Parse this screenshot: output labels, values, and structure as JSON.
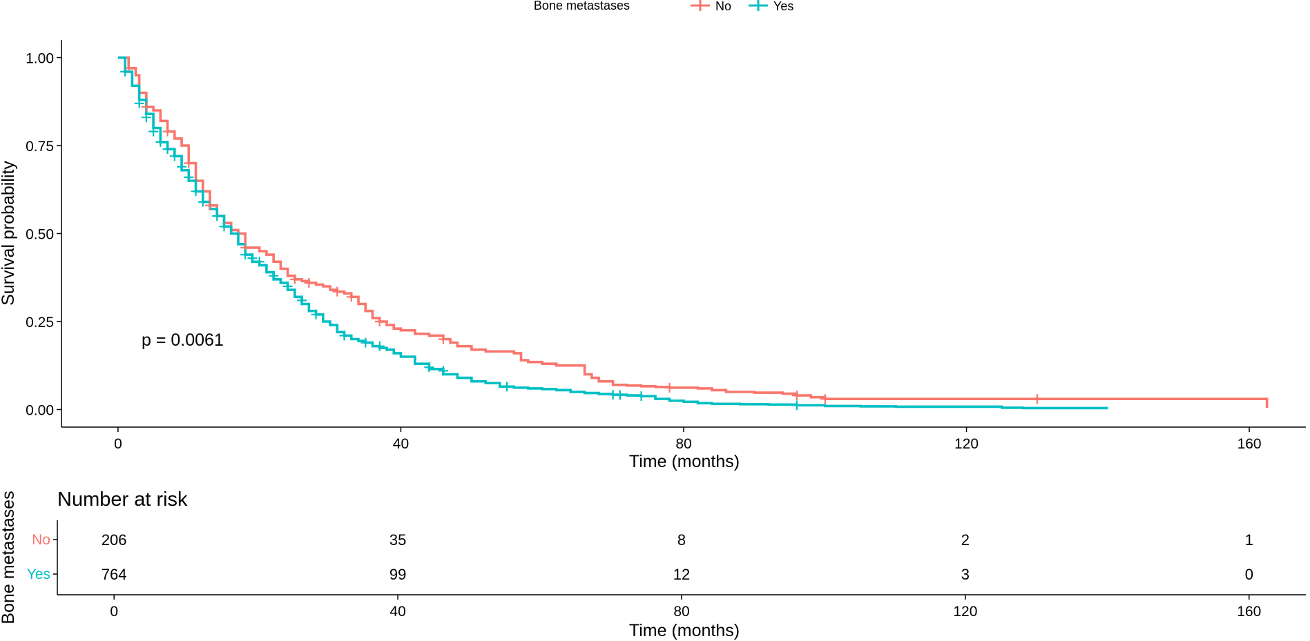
{
  "chart_data": [
    {
      "type": "line",
      "subtype": "kaplan-meier",
      "title": "",
      "xlabel": "Time (months)",
      "ylabel": "Survival probability",
      "xlim": [
        -8,
        168
      ],
      "ylim": [
        -0.05,
        1.05
      ],
      "xticks": [
        0,
        40,
        80,
        120,
        160
      ],
      "xtick_labels": [
        "0",
        "40",
        "80",
        "120",
        "160"
      ],
      "yticks": [
        0,
        0.25,
        0.5,
        0.75,
        1.0
      ],
      "ytick_labels": [
        "0.00",
        "0.25",
        "0.50",
        "0.75",
        "1.00"
      ],
      "grid": false,
      "legend": {
        "title": "Bone metastases",
        "position": "top",
        "entries": [
          "No",
          "Yes"
        ]
      },
      "annotation": "p = 0.0061",
      "series": [
        {
          "name": "No",
          "color": "#F8766D",
          "x": [
            0,
            1.5,
            2.5,
            3,
            4,
            5,
            6,
            7,
            8,
            9,
            10,
            11,
            12,
            13,
            14,
            15,
            16,
            17,
            18,
            19,
            20,
            21,
            22,
            23,
            24,
            25,
            26,
            27,
            28,
            29,
            30,
            31,
            32,
            33,
            34,
            35,
            36,
            37,
            38,
            39,
            40,
            42,
            44,
            46,
            47,
            48,
            50,
            52,
            54,
            56,
            57,
            58,
            60,
            62,
            64,
            66,
            67,
            68,
            70,
            72,
            74,
            76,
            78,
            80,
            82,
            84,
            86,
            88,
            90,
            92,
            94,
            96,
            98,
            100,
            102,
            130,
            162,
            162.5
          ],
          "y": [
            1.0,
            0.97,
            0.95,
            0.9,
            0.86,
            0.85,
            0.82,
            0.79,
            0.77,
            0.75,
            0.7,
            0.65,
            0.62,
            0.58,
            0.55,
            0.53,
            0.51,
            0.5,
            0.46,
            0.46,
            0.45,
            0.44,
            0.42,
            0.4,
            0.38,
            0.37,
            0.365,
            0.36,
            0.355,
            0.35,
            0.34,
            0.335,
            0.33,
            0.32,
            0.3,
            0.28,
            0.26,
            0.25,
            0.24,
            0.23,
            0.225,
            0.215,
            0.21,
            0.2,
            0.19,
            0.18,
            0.17,
            0.165,
            0.165,
            0.16,
            0.14,
            0.135,
            0.13,
            0.125,
            0.125,
            0.1,
            0.09,
            0.08,
            0.07,
            0.068,
            0.066,
            0.064,
            0.062,
            0.062,
            0.06,
            0.055,
            0.05,
            0.05,
            0.048,
            0.048,
            0.045,
            0.04,
            0.035,
            0.03,
            0.03,
            0.03,
            0.03,
            0.005
          ]
        },
        {
          "name": "Yes",
          "color": "#00BFC4",
          "x": [
            0,
            1,
            2,
            3,
            4,
            5,
            6,
            7,
            8,
            9,
            10,
            11,
            12,
            13,
            14,
            15,
            16,
            17,
            18,
            19,
            20,
            21,
            22,
            23,
            24,
            25,
            26,
            27,
            28,
            29,
            30,
            31,
            32,
            33,
            34,
            35,
            36,
            37,
            38,
            39,
            40,
            42,
            44,
            46,
            48,
            50,
            52,
            54,
            56,
            58,
            60,
            62,
            64,
            66,
            68,
            70,
            72,
            74,
            76,
            78,
            80,
            82,
            84,
            88,
            92,
            96,
            100,
            105,
            110,
            115,
            120,
            125,
            128,
            140
          ],
          "y": [
            1.0,
            0.96,
            0.92,
            0.88,
            0.84,
            0.8,
            0.76,
            0.74,
            0.72,
            0.68,
            0.65,
            0.62,
            0.59,
            0.57,
            0.55,
            0.52,
            0.5,
            0.47,
            0.44,
            0.42,
            0.41,
            0.39,
            0.37,
            0.36,
            0.34,
            0.32,
            0.3,
            0.28,
            0.27,
            0.25,
            0.24,
            0.22,
            0.21,
            0.2,
            0.195,
            0.19,
            0.18,
            0.175,
            0.17,
            0.16,
            0.15,
            0.13,
            0.115,
            0.1,
            0.09,
            0.08,
            0.075,
            0.065,
            0.062,
            0.06,
            0.058,
            0.055,
            0.05,
            0.047,
            0.044,
            0.042,
            0.04,
            0.038,
            0.03,
            0.025,
            0.022,
            0.018,
            0.016,
            0.015,
            0.014,
            0.012,
            0.01,
            0.009,
            0.008,
            0.008,
            0.008,
            0.005,
            0.004,
            0.004
          ]
        }
      ],
      "censor_marks": {
        "No": [
          [
            1.5,
            0.97
          ],
          [
            4,
            0.86
          ],
          [
            7,
            0.79
          ],
          [
            10,
            0.7
          ],
          [
            13,
            0.58
          ],
          [
            18,
            0.46
          ],
          [
            25,
            0.37
          ],
          [
            27,
            0.36
          ],
          [
            31,
            0.335
          ],
          [
            33,
            0.32
          ],
          [
            37,
            0.25
          ],
          [
            46,
            0.2
          ],
          [
            78,
            0.062
          ],
          [
            96,
            0.04
          ],
          [
            100,
            0.03
          ],
          [
            130,
            0.03
          ]
        ],
        "Yes": [
          [
            1,
            0.96
          ],
          [
            3,
            0.87
          ],
          [
            4,
            0.83
          ],
          [
            5,
            0.79
          ],
          [
            6,
            0.76
          ],
          [
            7,
            0.74
          ],
          [
            8,
            0.72
          ],
          [
            9,
            0.69
          ],
          [
            10,
            0.66
          ],
          [
            11,
            0.62
          ],
          [
            12,
            0.59
          ],
          [
            14,
            0.55
          ],
          [
            15,
            0.52
          ],
          [
            18,
            0.44
          ],
          [
            19,
            0.43
          ],
          [
            20,
            0.42
          ],
          [
            22,
            0.38
          ],
          [
            24,
            0.35
          ],
          [
            26,
            0.31
          ],
          [
            28,
            0.27
          ],
          [
            32,
            0.21
          ],
          [
            35,
            0.19
          ],
          [
            37,
            0.18
          ],
          [
            44,
            0.12
          ],
          [
            46,
            0.11
          ],
          [
            55,
            0.065
          ],
          [
            70,
            0.042
          ],
          [
            71,
            0.041
          ],
          [
            74,
            0.038
          ],
          [
            96,
            0.012
          ]
        ]
      }
    },
    {
      "type": "table",
      "title": "Number at risk",
      "ylabel": "Bone metastases",
      "xlabel": "Time (months)",
      "columns": [
        0,
        40,
        80,
        120,
        160
      ],
      "column_labels": [
        "0",
        "40",
        "80",
        "120",
        "160"
      ],
      "rows": [
        {
          "name": "No",
          "color": "#F8766D",
          "values": [
            "206",
            "35",
            "8",
            "2",
            "1"
          ]
        },
        {
          "name": "Yes",
          "color": "#00BFC4",
          "values": [
            "764",
            "99",
            "12",
            "3",
            "0"
          ]
        }
      ]
    }
  ]
}
